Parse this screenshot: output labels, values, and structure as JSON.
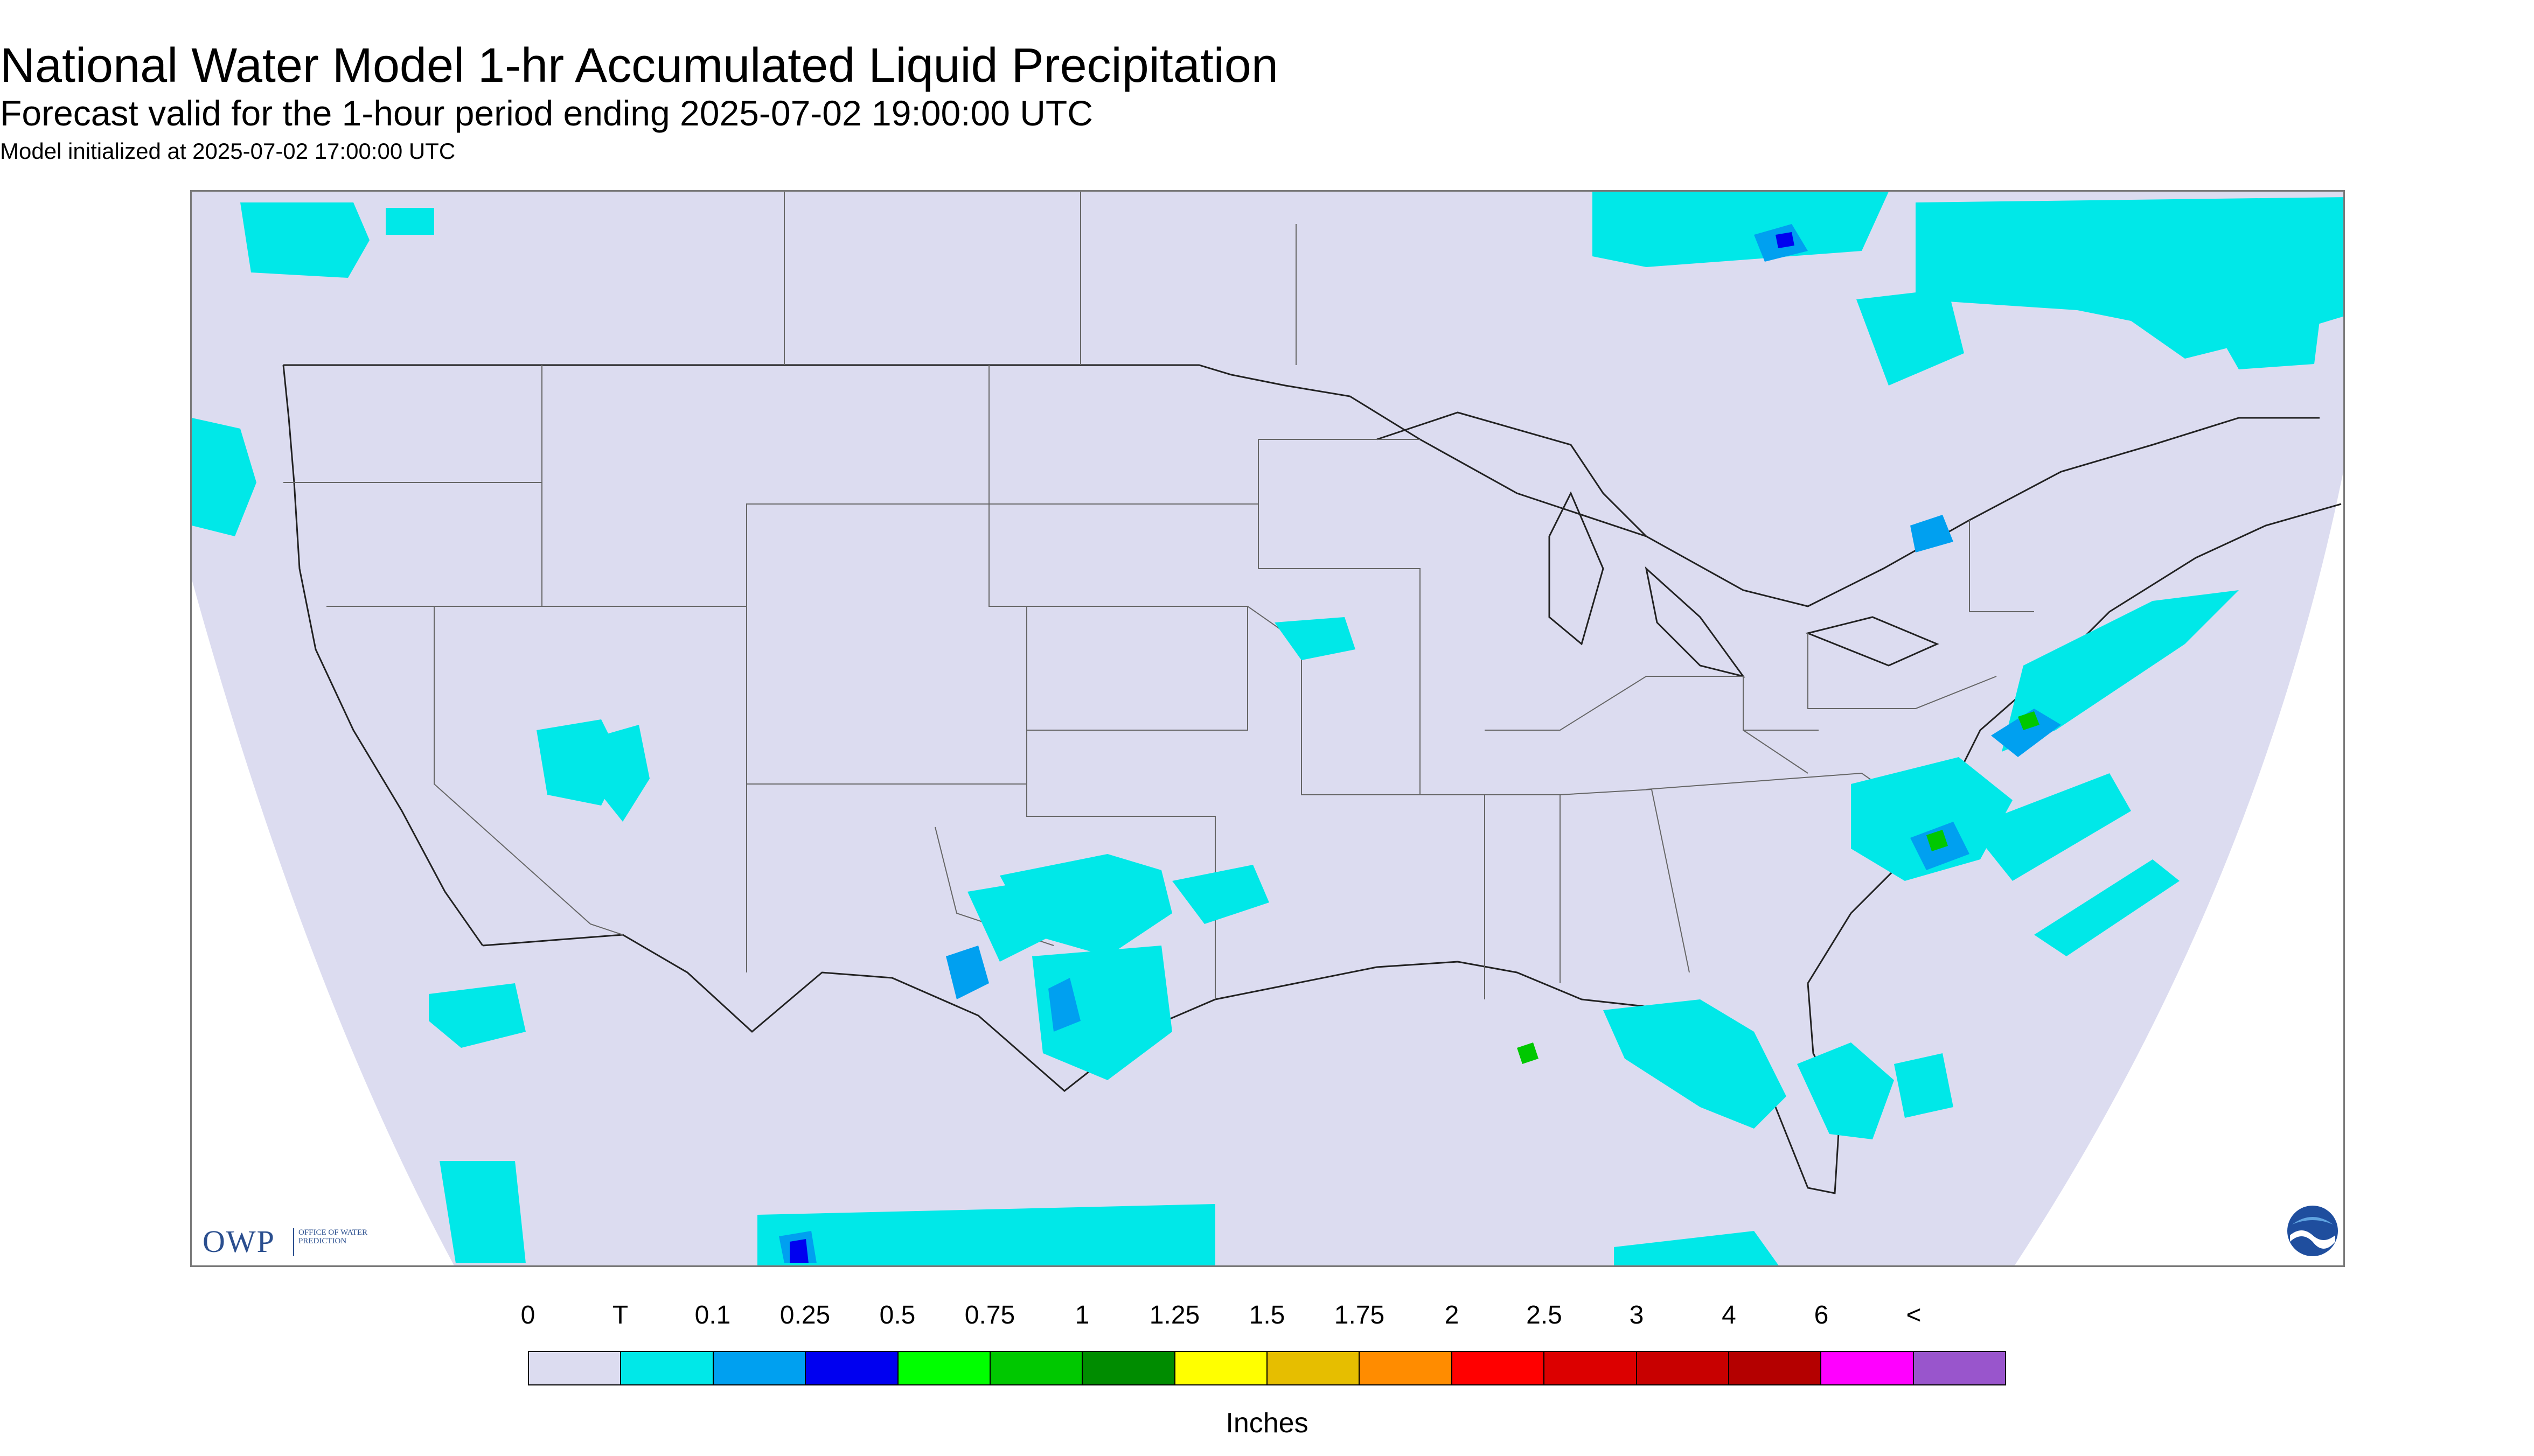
{
  "header": {
    "title": "National Water Model 1-hr Accumulated Liquid Precipitation",
    "subtitle": "Forecast valid for the 1-hour period ending 2025-07-02 19:00:00 UTC",
    "init": "Model initialized at 2025-07-02 17:00:00 UTC"
  },
  "logos": {
    "owp_letters": "OWP",
    "owp_office": "OFFICE OF WATER PREDICTION",
    "noaa": "NOAA"
  },
  "legend": {
    "units": "Inches",
    "labels": [
      "0",
      "T",
      "0.1",
      "0.25",
      "0.5",
      "0.75",
      "1",
      "1.25",
      "1.5",
      "1.75",
      "2",
      "2.5",
      "3",
      "4",
      "6",
      "<"
    ],
    "colors": [
      "#dcdcf0",
      "#00e8e8",
      "#00a0f0",
      "#0000f0",
      "#00ff00",
      "#00c800",
      "#008c00",
      "#ffff00",
      "#e6be00",
      "#ff8c00",
      "#ff0000",
      "#dc0000",
      "#c80000",
      "#b40000",
      "#ff00ff",
      "#9955cc"
    ]
  },
  "map": {
    "no_data_color": "#dcdcf0",
    "outside_color": "#ffffff",
    "boundary_color": "#555555",
    "coast_color": "#111111"
  }
}
